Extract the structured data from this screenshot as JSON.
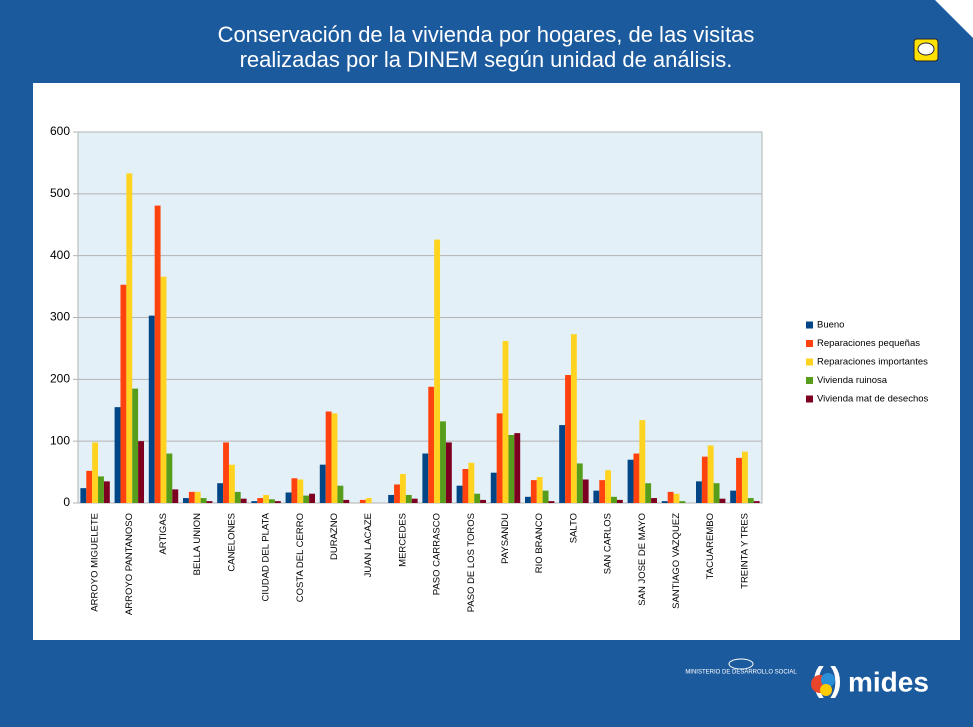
{
  "chart_data": {
    "type": "bar",
    "title": "Conservación de la vivienda por hogares, de las visitas realizadas por la DINEM según unidad de análisis.",
    "categories": [
      "ARROYO MIGUELETE",
      "ARROYO PANTANOSO",
      "ARTIGAS",
      "BELLA UNION",
      "CANELONES",
      "CIUDAD DEL PLATA",
      "COSTA DEL CERRO",
      "DURAZNO",
      "JUAN LACAZE",
      "MERCEDES",
      "PASO CARRASCO",
      "PASO DE LOS TOROS",
      "PAYSANDU",
      "RIO BRANCO",
      "SALTO",
      "SAN CARLOS",
      "SAN JOSE DE MAYO",
      "SANTIAGO VAZQUEZ",
      "TACUAREMBO",
      "TREINTA Y TRES"
    ],
    "series": [
      {
        "name": "Bueno",
        "color": "#004586",
        "values": [
          24,
          155,
          303,
          8,
          32,
          3,
          17,
          62,
          0,
          13,
          80,
          28,
          49,
          10,
          126,
          20,
          70,
          3,
          35,
          20
        ]
      },
      {
        "name": "Reparaciones pequeñas",
        "color": "#ff420e",
        "values": [
          52,
          353,
          481,
          18,
          98,
          8,
          40,
          148,
          5,
          30,
          188,
          55,
          145,
          37,
          207,
          37,
          80,
          18,
          75,
          73
        ]
      },
      {
        "name": "Reparaciones importantes",
        "color": "#ffd320",
        "values": [
          98,
          533,
          366,
          18,
          62,
          13,
          38,
          145,
          8,
          47,
          426,
          65,
          262,
          42,
          273,
          53,
          134,
          15,
          93,
          83
        ]
      },
      {
        "name": "Vivienda ruinosa",
        "color": "#579d1c",
        "values": [
          43,
          185,
          80,
          8,
          18,
          6,
          12,
          28,
          0,
          13,
          132,
          15,
          110,
          20,
          64,
          10,
          32,
          3,
          32,
          8
        ]
      },
      {
        "name": "Vivienda mat de desechos",
        "color": "#7e0021",
        "values": [
          35,
          100,
          22,
          3,
          7,
          3,
          15,
          5,
          0,
          7,
          98,
          5,
          113,
          3,
          38,
          5,
          8,
          0,
          7,
          3
        ]
      }
    ],
    "ylim": [
      0,
      600
    ],
    "yticks": [
      0,
      100,
      200,
      300,
      400,
      500,
      600
    ],
    "grid": true,
    "legend": "right"
  },
  "footer": {
    "ministry": "MINISTERIO DE DESARROLLO SOCIAL",
    "brand": "mides"
  }
}
